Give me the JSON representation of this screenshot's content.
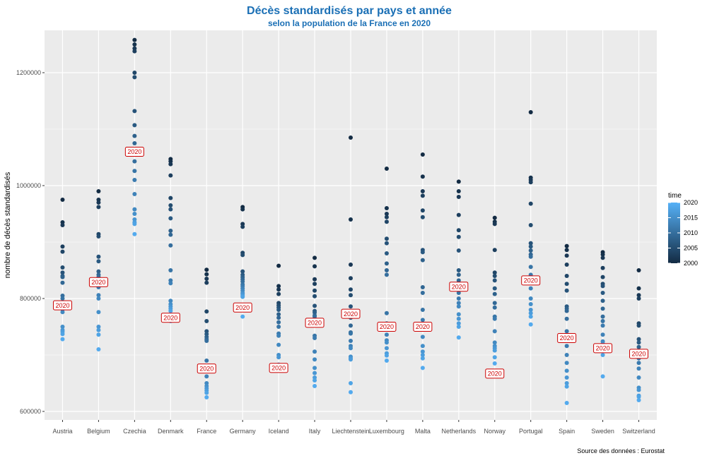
{
  "chart_data": {
    "type": "scatter",
    "title": "Décès standardisés par pays et année",
    "subtitle": "selon la population de la France en 2020",
    "xlabel": "",
    "ylabel": "nombre de décès standardisés",
    "caption": "Source des données : Eurostat",
    "ylim": [
      585000,
      1275000
    ],
    "yticks": [
      600000,
      800000,
      1000000,
      1200000
    ],
    "ytick_labels": [
      "600000",
      "800000",
      "1000000",
      "1200000"
    ],
    "grid": true,
    "legend": {
      "title": "time",
      "position": "right",
      "range": [
        2000,
        2020
      ],
      "ticks": [
        "2020",
        "2015",
        "2010",
        "2005",
        "2000"
      ],
      "colors": [
        "#132b43",
        "#56b1f7"
      ]
    },
    "highlight_label": "2020",
    "label_color": "#cc0000",
    "title_color": "#1a6fb5",
    "categories": [
      "Austria",
      "Belgium",
      "Czechia",
      "Denmark",
      "France",
      "Germany",
      "Iceland",
      "Italy",
      "Liechtenstein",
      "Luxembourg",
      "Malta",
      "Netherlands",
      "Norway",
      "Portugal",
      "Spain",
      "Sweden",
      "Switzerland"
    ],
    "series": [
      {
        "country": "Austria",
        "years": [
          2000,
          2001,
          2002,
          2003,
          2004,
          2005,
          2006,
          2007,
          2008,
          2009,
          2010,
          2011,
          2012,
          2013,
          2014,
          2015,
          2016,
          2017,
          2018,
          2019,
          2020
        ],
        "values": [
          975000,
          935000,
          930000,
          892000,
          883000,
          855000,
          846000,
          840000,
          838000,
          828000,
          805000,
          800000,
          792000,
          781000,
          776000,
          750000,
          744000,
          741000,
          737000,
          728000,
          788000
        ]
      },
      {
        "country": "Belgium",
        "years": [
          2000,
          2001,
          2002,
          2003,
          2004,
          2005,
          2006,
          2007,
          2008,
          2009,
          2010,
          2011,
          2012,
          2013,
          2014,
          2015,
          2016,
          2017,
          2018,
          2019,
          2020
        ],
        "values": [
          990000,
          975000,
          970000,
          962000,
          914000,
          910000,
          874000,
          866000,
          848000,
          842000,
          838000,
          832000,
          820000,
          806000,
          800000,
          776000,
          750000,
          744000,
          736000,
          710000,
          829000
        ]
      },
      {
        "country": "Czechia",
        "years": [
          2000,
          2001,
          2002,
          2003,
          2004,
          2005,
          2006,
          2007,
          2008,
          2009,
          2010,
          2011,
          2012,
          2013,
          2014,
          2015,
          2016,
          2017,
          2018,
          2019,
          2020
        ],
        "values": [
          1258000,
          1250000,
          1243000,
          1238000,
          1200000,
          1192000,
          1132000,
          1107000,
          1088000,
          1075000,
          1043000,
          1026000,
          1010000,
          985000,
          958000,
          950000,
          940000,
          935000,
          932000,
          914000,
          1060000
        ]
      },
      {
        "country": "Denmark",
        "years": [
          2000,
          2001,
          2002,
          2003,
          2004,
          2005,
          2006,
          2007,
          2008,
          2009,
          2010,
          2011,
          2012,
          2013,
          2014,
          2015,
          2016,
          2017,
          2018,
          2019,
          2020
        ],
        "values": [
          1047000,
          1043000,
          1038000,
          1018000,
          978000,
          965000,
          958000,
          942000,
          920000,
          913000,
          894000,
          850000,
          832000,
          827000,
          796000,
          790000,
          786000,
          782000,
          778000,
          760000,
          766000
        ]
      },
      {
        "country": "France",
        "years": [
          2000,
          2001,
          2002,
          2003,
          2004,
          2005,
          2006,
          2007,
          2008,
          2009,
          2010,
          2011,
          2012,
          2013,
          2014,
          2015,
          2016,
          2017,
          2018,
          2019,
          2020
        ],
        "values": [
          851000,
          843000,
          835000,
          828000,
          777000,
          760000,
          742000,
          737000,
          732000,
          728000,
          725000,
          690000,
          675000,
          662000,
          650000,
          645000,
          641000,
          637000,
          633000,
          625000,
          676000
        ]
      },
      {
        "country": "Germany",
        "years": [
          2000,
          2001,
          2002,
          2003,
          2004,
          2005,
          2006,
          2007,
          2008,
          2009,
          2010,
          2011,
          2012,
          2013,
          2014,
          2015,
          2016,
          2017,
          2018,
          2019,
          2020
        ],
        "values": [
          962000,
          958000,
          932000,
          927000,
          881000,
          877000,
          848000,
          842000,
          838000,
          834000,
          830000,
          825000,
          822000,
          818000,
          814000,
          810000,
          808000,
          805000,
          803000,
          768000,
          784000
        ]
      },
      {
        "country": "Iceland",
        "years": [
          2000,
          2001,
          2002,
          2003,
          2004,
          2005,
          2006,
          2007,
          2008,
          2009,
          2010,
          2011,
          2012,
          2013,
          2014,
          2015,
          2016,
          2017,
          2018,
          2019,
          2020
        ],
        "values": [
          858000,
          822000,
          816000,
          808000,
          792000,
          788000,
          784000,
          780000,
          772000,
          766000,
          758000,
          750000,
          738000,
          734000,
          718000,
          700000,
          696000,
          683000,
          680000,
          676000,
          677000
        ]
      },
      {
        "country": "Italy",
        "years": [
          2000,
          2001,
          2002,
          2003,
          2004,
          2005,
          2006,
          2007,
          2008,
          2009,
          2010,
          2011,
          2012,
          2013,
          2014,
          2015,
          2016,
          2017,
          2018,
          2019,
          2020
        ],
        "values": [
          872000,
          857000,
          834000,
          826000,
          814000,
          804000,
          787000,
          778000,
          775000,
          770000,
          768000,
          734000,
          730000,
          706000,
          692000,
          677000,
          668000,
          660000,
          655000,
          645000,
          757000
        ]
      },
      {
        "country": "Liechtenstein",
        "years": [
          2000,
          2001,
          2002,
          2003,
          2004,
          2005,
          2006,
          2007,
          2008,
          2009,
          2010,
          2011,
          2012,
          2013,
          2014,
          2015,
          2016,
          2017,
          2018,
          2019,
          2020
        ],
        "values": [
          1085000,
          940000,
          860000,
          836000,
          816000,
          806000,
          786000,
          776000,
          766000,
          752000,
          740000,
          738000,
          725000,
          716000,
          712000,
          697000,
          694000,
          692000,
          650000,
          634000,
          773000
        ]
      },
      {
        "country": "Luxembourg",
        "years": [
          2000,
          2001,
          2002,
          2003,
          2004,
          2005,
          2006,
          2007,
          2008,
          2009,
          2010,
          2011,
          2012,
          2013,
          2014,
          2015,
          2016,
          2017,
          2018,
          2019,
          2020
        ],
        "values": [
          1030000,
          960000,
          950000,
          944000,
          936000,
          906000,
          898000,
          880000,
          862000,
          850000,
          842000,
          774000,
          756000,
          736000,
          726000,
          722000,
          712000,
          703000,
          699000,
          690000,
          750000
        ]
      },
      {
        "country": "Malta",
        "years": [
          2000,
          2001,
          2002,
          2003,
          2004,
          2005,
          2006,
          2007,
          2008,
          2009,
          2010,
          2011,
          2012,
          2013,
          2014,
          2015,
          2016,
          2017,
          2018,
          2019,
          2020
        ],
        "values": [
          1055000,
          1016000,
          990000,
          982000,
          956000,
          944000,
          886000,
          882000,
          868000,
          820000,
          810000,
          780000,
          762000,
          752000,
          732000,
          716000,
          706000,
          700000,
          694000,
          677000,
          750000
        ]
      },
      {
        "country": "Netherlands",
        "years": [
          2000,
          2001,
          2002,
          2003,
          2004,
          2005,
          2006,
          2007,
          2008,
          2009,
          2010,
          2011,
          2012,
          2013,
          2014,
          2015,
          2016,
          2017,
          2018,
          2019,
          2020
        ],
        "values": [
          1007000,
          990000,
          980000,
          948000,
          921000,
          909000,
          885000,
          850000,
          842000,
          832000,
          820000,
          810000,
          800000,
          792000,
          786000,
          772000,
          764000,
          756000,
          750000,
          731000,
          821000
        ]
      },
      {
        "country": "Norway",
        "years": [
          2000,
          2001,
          2002,
          2003,
          2004,
          2005,
          2006,
          2007,
          2008,
          2009,
          2010,
          2011,
          2012,
          2013,
          2014,
          2015,
          2016,
          2017,
          2018,
          2019,
          2020
        ],
        "values": [
          943000,
          936000,
          932000,
          886000,
          846000,
          840000,
          832000,
          818000,
          808000,
          792000,
          784000,
          768000,
          764000,
          742000,
          722000,
          716000,
          712000,
          708000,
          696000,
          685000,
          667000
        ]
      },
      {
        "country": "Portugal",
        "years": [
          2000,
          2001,
          2002,
          2003,
          2004,
          2005,
          2006,
          2007,
          2008,
          2009,
          2010,
          2011,
          2012,
          2013,
          2014,
          2015,
          2016,
          2017,
          2018,
          2019,
          2020
        ],
        "values": [
          1130000,
          1014000,
          1010000,
          1006000,
          968000,
          930000,
          898000,
          892000,
          885000,
          878000,
          874000,
          856000,
          842000,
          818000,
          800000,
          790000,
          780000,
          774000,
          768000,
          754000,
          832000
        ]
      },
      {
        "country": "Spain",
        "years": [
          2000,
          2001,
          2002,
          2003,
          2004,
          2005,
          2006,
          2007,
          2008,
          2009,
          2010,
          2011,
          2012,
          2013,
          2014,
          2015,
          2016,
          2017,
          2018,
          2019,
          2020
        ],
        "values": [
          893000,
          886000,
          876000,
          860000,
          840000,
          826000,
          814000,
          786000,
          782000,
          778000,
          764000,
          742000,
          716000,
          700000,
          686000,
          672000,
          660000,
          650000,
          644000,
          615000,
          730000
        ]
      },
      {
        "country": "Sweden",
        "years": [
          2000,
          2001,
          2002,
          2003,
          2004,
          2005,
          2006,
          2007,
          2008,
          2009,
          2010,
          2011,
          2012,
          2013,
          2014,
          2015,
          2016,
          2017,
          2018,
          2019,
          2020
        ],
        "values": [
          882000,
          878000,
          872000,
          854000,
          838000,
          826000,
          822000,
          810000,
          796000,
          782000,
          768000,
          760000,
          752000,
          736000,
          724000,
          720000,
          716000,
          712000,
          700000,
          662000,
          712000
        ]
      },
      {
        "country": "Switzerland",
        "years": [
          2000,
          2001,
          2002,
          2003,
          2004,
          2005,
          2006,
          2007,
          2008,
          2009,
          2010,
          2011,
          2012,
          2013,
          2014,
          2015,
          2016,
          2017,
          2018,
          2019,
          2020
        ],
        "values": [
          850000,
          818000,
          806000,
          800000,
          756000,
          752000,
          728000,
          722000,
          714000,
          708000,
          700000,
          694000,
          686000,
          676000,
          660000,
          642000,
          638000,
          628000,
          626000,
          620000,
          702000
        ]
      }
    ]
  }
}
